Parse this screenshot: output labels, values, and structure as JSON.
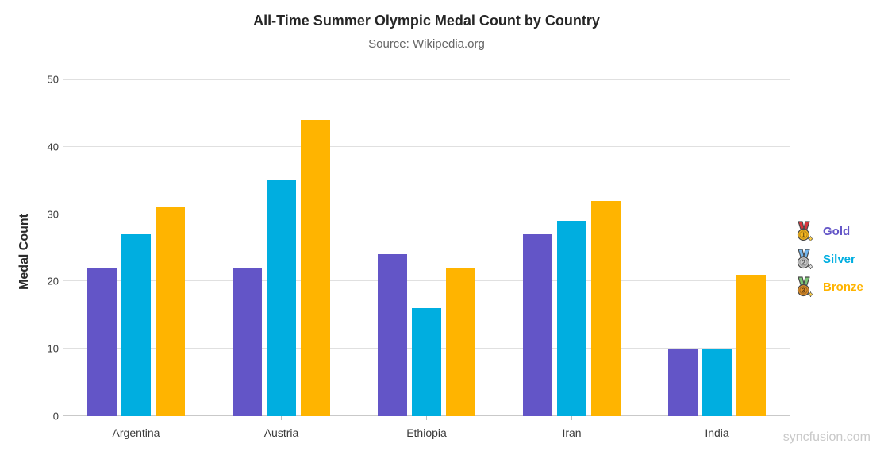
{
  "chart_data": {
    "type": "bar",
    "title": "All-Time Summer Olympic Medal Count by Country",
    "subtitle": "Source: Wikipedia.org",
    "categories": [
      "Argentina",
      "Austria",
      "Ethiopia",
      "Iran",
      "India"
    ],
    "series": [
      {
        "name": "Gold",
        "color": "#6355C7",
        "values": [
          22,
          22,
          24,
          27,
          10
        ],
        "icon": {
          "name": "gold-medal-icon",
          "ribbon": "#D8343C",
          "medal": "#F5B61F",
          "sparkle": "#FFD24A",
          "rank": "1"
        }
      },
      {
        "name": "Silver",
        "color": "#00AEE0",
        "values": [
          27,
          35,
          16,
          29,
          10
        ],
        "icon": {
          "name": "silver-medal-icon",
          "ribbon": "#74B7EE",
          "medal": "#C9C9C9",
          "sparkle": "#E2E2E2",
          "rank": "2"
        }
      },
      {
        "name": "Bronze",
        "color": "#FFB400",
        "values": [
          31,
          44,
          22,
          32,
          21
        ],
        "icon": {
          "name": "bronze-medal-icon",
          "ribbon": "#7CC576",
          "medal": "#DD8E2A",
          "sparkle": "#FFD24A",
          "rank": "3"
        }
      }
    ],
    "xlabel": "",
    "ylabel": "Medal Count",
    "ylim": [
      0,
      50
    ],
    "yticks": [
      0,
      10,
      20,
      30,
      40,
      50
    ],
    "grid": true,
    "legend_position": "right"
  },
  "watermark": "syncfusion.com"
}
